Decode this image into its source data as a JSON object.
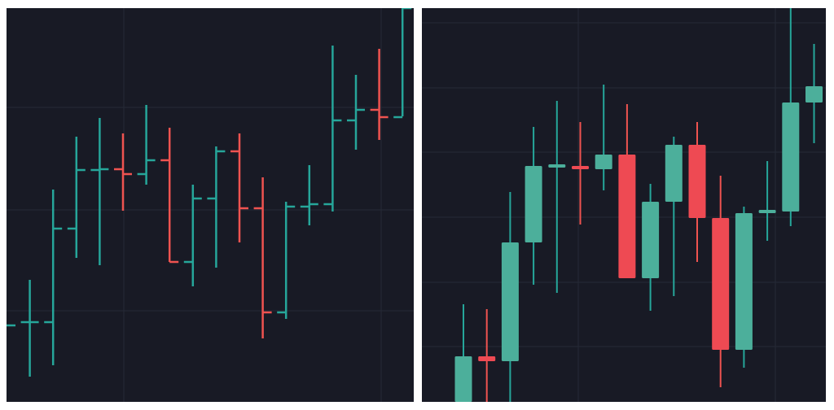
{
  "colors": {
    "background": "#181a25",
    "grid": "#262a36",
    "up": "#26a69a",
    "down": "#ef5350",
    "up_body": "#4caf9b",
    "down_body": "#ee4a53"
  },
  "chart_data": [
    {
      "type": "ohlc",
      "title": "",
      "grid": true,
      "legend": "none",
      "y_range": [
        0,
        484
      ],
      "bars": [
        {
          "open": 94,
          "high": 94,
          "low": 94,
          "close": 94
        },
        {
          "open": 98,
          "high": 150,
          "low": 31,
          "close": 98
        },
        {
          "open": 98,
          "high": 261,
          "low": 45,
          "close": 213
        },
        {
          "open": 213,
          "high": 326,
          "low": 177,
          "close": 285
        },
        {
          "open": 285,
          "high": 349,
          "low": 168,
          "close": 286
        },
        {
          "open": 286,
          "high": 330,
          "low": 235,
          "close": 280
        },
        {
          "open": 280,
          "high": 365,
          "low": 267,
          "close": 297
        },
        {
          "open": 297,
          "high": 337,
          "low": 172,
          "close": 172
        },
        {
          "open": 172,
          "high": 267,
          "low": 142,
          "close": 250
        },
        {
          "open": 250,
          "high": 314,
          "low": 165,
          "close": 308
        },
        {
          "open": 308,
          "high": 330,
          "low": 196,
          "close": 238
        },
        {
          "open": 238,
          "high": 276,
          "low": 78,
          "close": 110
        },
        {
          "open": 110,
          "high": 246,
          "low": 102,
          "close": 240
        },
        {
          "open": 240,
          "high": 291,
          "low": 217,
          "close": 243
        },
        {
          "open": 243,
          "high": 438,
          "low": 234,
          "close": 346
        },
        {
          "open": 346,
          "high": 402,
          "low": 310,
          "close": 359
        },
        {
          "open": 359,
          "high": 434,
          "low": 322,
          "close": 350
        },
        {
          "open": 350,
          "high": 484,
          "low": 351,
          "close": 484
        }
      ]
    },
    {
      "type": "candlestick",
      "title": "",
      "grid": true,
      "legend": "none",
      "y_range": [
        0,
        484
      ],
      "candles": [
        {
          "open": 0,
          "high": 120,
          "low": 0,
          "close": 56
        },
        {
          "open": 56,
          "high": 114,
          "low": 0,
          "close": 50
        },
        {
          "open": 50,
          "high": 258,
          "low": 0,
          "close": 196
        },
        {
          "open": 196,
          "high": 338,
          "low": 144,
          "close": 290
        },
        {
          "open": 290,
          "high": 370,
          "low": 134,
          "close": 290
        },
        {
          "open": 290,
          "high": 344,
          "low": 218,
          "close": 286
        },
        {
          "open": 286,
          "high": 390,
          "low": 260,
          "close": 304
        },
        {
          "open": 304,
          "high": 366,
          "low": 152,
          "close": 152
        },
        {
          "open": 152,
          "high": 268,
          "low": 112,
          "close": 246
        },
        {
          "open": 246,
          "high": 326,
          "low": 130,
          "close": 316
        },
        {
          "open": 316,
          "high": 344,
          "low": 172,
          "close": 226
        },
        {
          "open": 226,
          "high": 278,
          "low": 18,
          "close": 64
        },
        {
          "open": 64,
          "high": 240,
          "low": 42,
          "close": 232
        },
        {
          "open": 232,
          "high": 296,
          "low": 198,
          "close": 234
        },
        {
          "open": 234,
          "high": 484,
          "low": 216,
          "close": 368
        },
        {
          "open": 368,
          "high": 440,
          "low": 318,
          "close": 388
        }
      ]
    }
  ]
}
